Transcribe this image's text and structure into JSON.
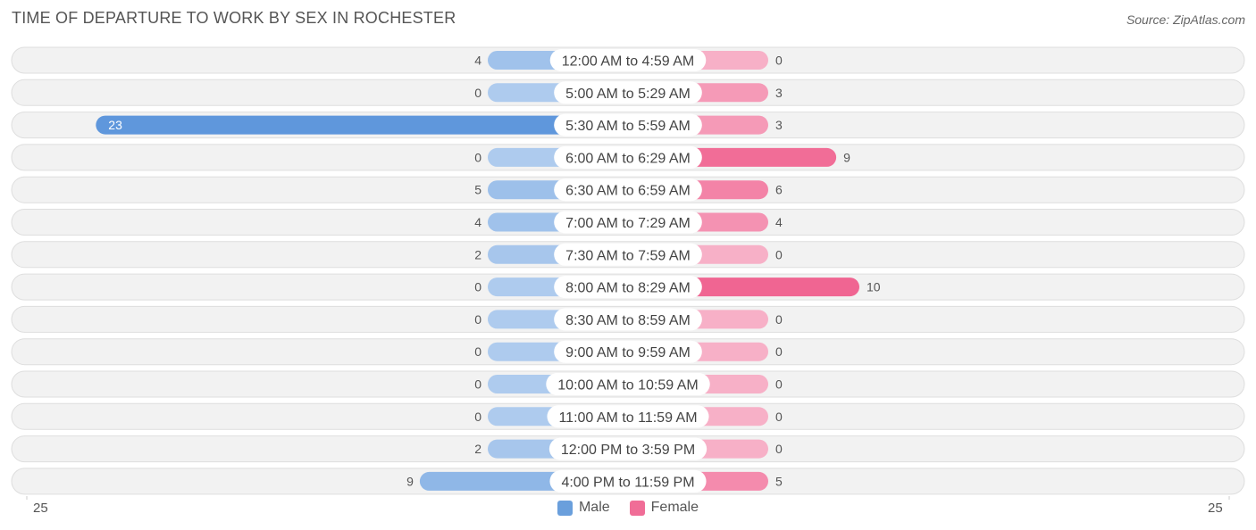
{
  "title": "TIME OF DEPARTURE TO WORK BY SEX IN ROCHESTER",
  "source": "Source: ZipAtlas.com",
  "axis": {
    "left_label": "25",
    "right_label": "25"
  },
  "legend": {
    "male_label": "Male",
    "female_label": "Female",
    "male_color": "#6a9fdc",
    "female_color": "#f06d97"
  },
  "chart_data": {
    "type": "bar",
    "orientation": "horizontal-diverging",
    "title": "TIME OF DEPARTURE TO WORK BY SEX IN ROCHESTER",
    "categories": [
      "12:00 AM to 4:59 AM",
      "5:00 AM to 5:29 AM",
      "5:30 AM to 5:59 AM",
      "6:00 AM to 6:29 AM",
      "6:30 AM to 6:59 AM",
      "7:00 AM to 7:29 AM",
      "7:30 AM to 7:59 AM",
      "8:00 AM to 8:29 AM",
      "8:30 AM to 8:59 AM",
      "9:00 AM to 9:59 AM",
      "10:00 AM to 10:59 AM",
      "11:00 AM to 11:59 AM",
      "12:00 PM to 3:59 PM",
      "4:00 PM to 11:59 PM"
    ],
    "series": [
      {
        "name": "Male",
        "values": [
          4,
          0,
          23,
          0,
          5,
          4,
          2,
          0,
          0,
          0,
          0,
          0,
          2,
          9
        ]
      },
      {
        "name": "Female",
        "values": [
          0,
          3,
          3,
          9,
          6,
          4,
          0,
          10,
          0,
          0,
          0,
          0,
          0,
          5
        ]
      }
    ],
    "xlim": [
      -25,
      25
    ],
    "legend_position": "bottom-center"
  }
}
